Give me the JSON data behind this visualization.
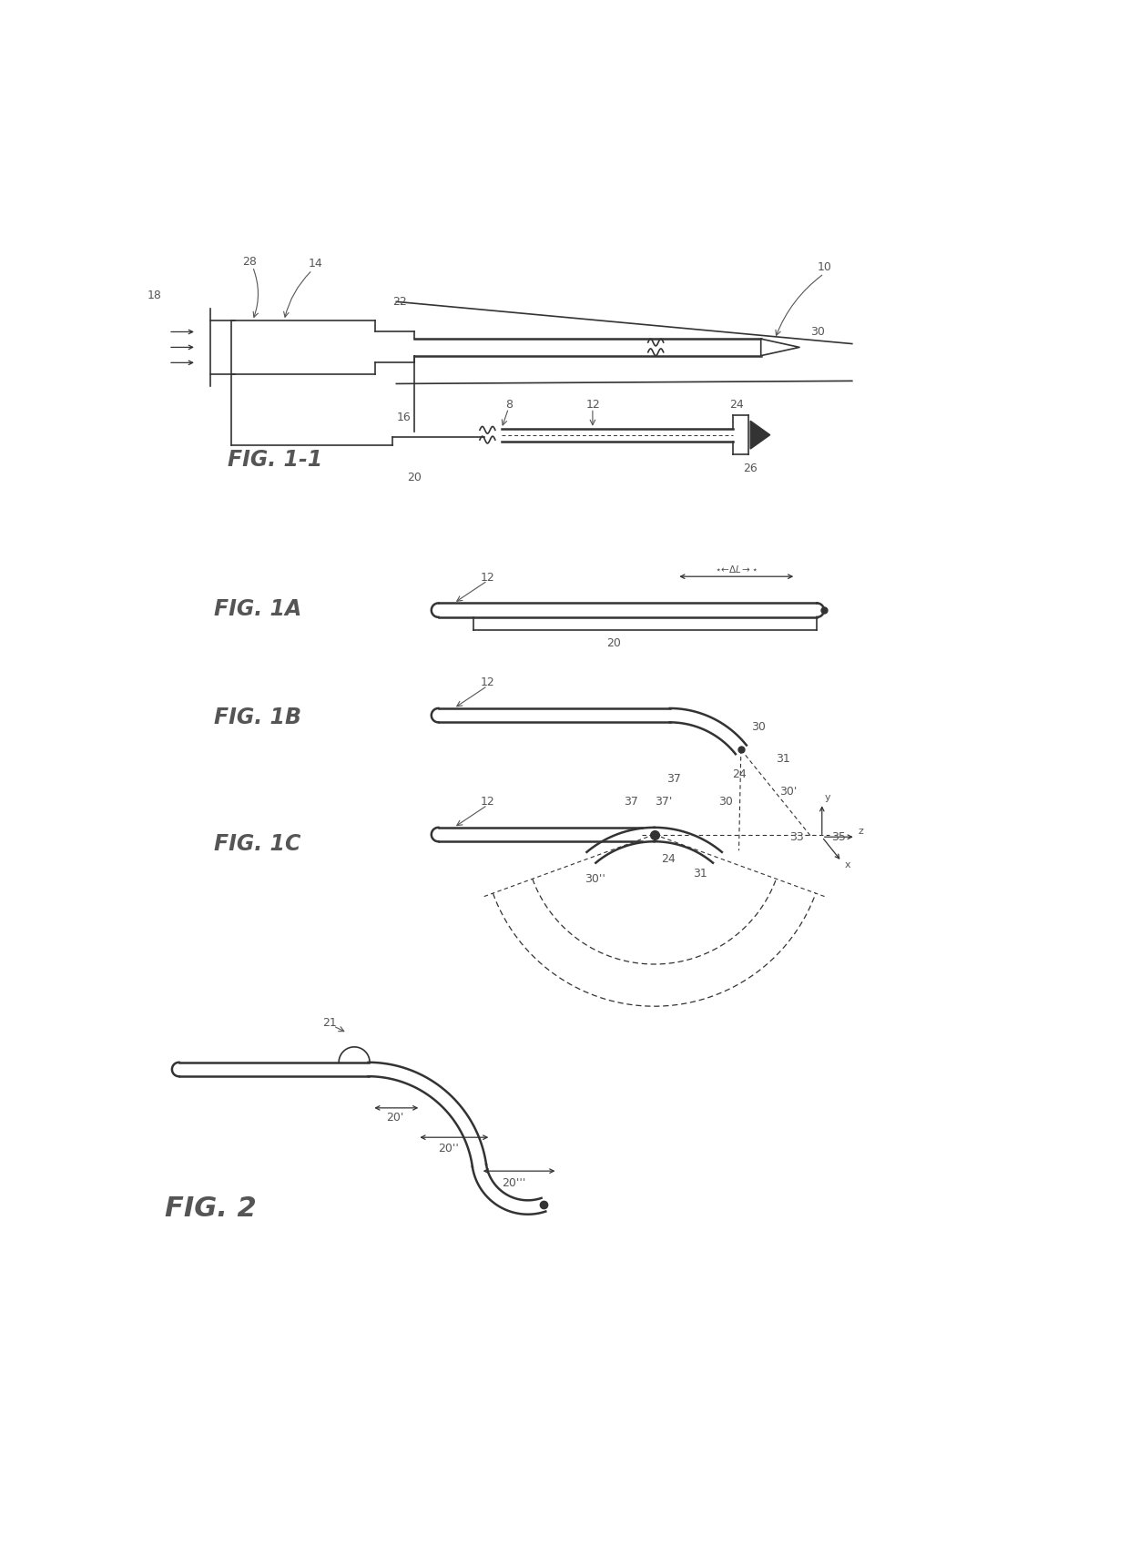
{
  "bg_color": "#ffffff",
  "line_color": "#333333",
  "label_color": "#555555",
  "fig_width": 12.4,
  "fig_height": 17.09,
  "figures": {
    "fig1_1_label": "FIG. 1-1",
    "fig1A_label": "FIG. 1A",
    "fig1B_label": "FIG. 1B",
    "fig1C_label": "FIG. 1C",
    "fig2_label": "FIG. 2"
  }
}
